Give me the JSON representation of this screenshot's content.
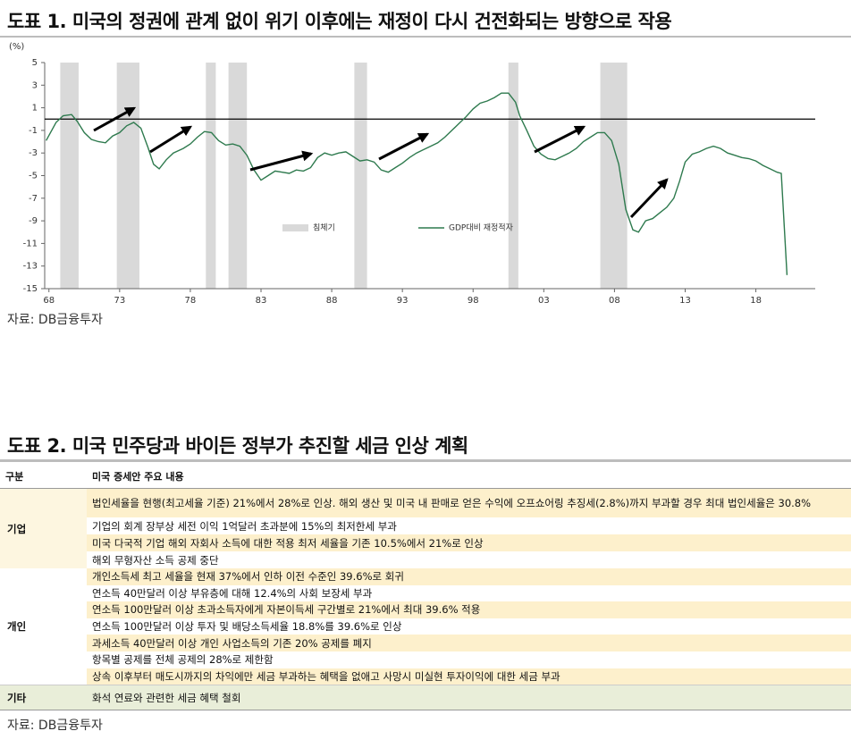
{
  "chart_data": {
    "type": "line",
    "title": "도표 1. 미국의 정권에 관계 없이 위기 이후에는 재정이 다시 건전화되는 방향으로 작용",
    "y_label": "(%)",
    "source": "자료: DB금융투자",
    "xlim": [
      1967.7,
      2022.2
    ],
    "xticks": [
      {
        "value": 1968,
        "label": "68"
      },
      {
        "value": 1973,
        "label": "73"
      },
      {
        "value": 1978,
        "label": "78"
      },
      {
        "value": 1983,
        "label": "83"
      },
      {
        "value": 1988,
        "label": "88"
      },
      {
        "value": 1993,
        "label": "93"
      },
      {
        "value": 1998,
        "label": "98"
      },
      {
        "value": 2003,
        "label": "03"
      },
      {
        "value": 2008,
        "label": "08"
      },
      {
        "value": 2013,
        "label": "13"
      },
      {
        "value": 2018,
        "label": "18"
      }
    ],
    "ylim": [
      -15,
      5
    ],
    "yticks": [
      5,
      3,
      1,
      -1,
      -3,
      -5,
      -7,
      -9,
      -11,
      -13,
      -15
    ],
    "recessions": {
      "name": "침체기",
      "color": "#d9d9d9",
      "ranges": [
        [
          1968.8,
          1970.1
        ],
        [
          1972.8,
          1974.4
        ],
        [
          1979.1,
          1979.8
        ],
        [
          1980.7,
          1982.0
        ],
        [
          1989.6,
          1990.5
        ],
        [
          2000.5,
          2001.2
        ],
        [
          2007.0,
          2008.9
        ]
      ]
    },
    "series": [
      {
        "name": "GDP대비 재정적자",
        "color": "#2e7a4e",
        "x": [
          1967.8,
          1968.5,
          1969.0,
          1969.6,
          1970.0,
          1970.5,
          1971.0,
          1971.5,
          1972.0,
          1972.5,
          1973.0,
          1973.5,
          1974.0,
          1974.5,
          1975.0,
          1975.4,
          1975.8,
          1976.3,
          1976.8,
          1977.5,
          1978.0,
          1978.5,
          1979.0,
          1979.5,
          1980.0,
          1980.5,
          1981.0,
          1981.5,
          1982.0,
          1982.5,
          1983.0,
          1983.5,
          1984.0,
          1984.5,
          1985.0,
          1985.5,
          1986.0,
          1986.5,
          1987.0,
          1987.5,
          1988.0,
          1988.5,
          1989.0,
          1989.5,
          1990.0,
          1990.5,
          1991.0,
          1991.5,
          1992.0,
          1992.5,
          1993.0,
          1993.5,
          1994.0,
          1994.5,
          1995.0,
          1995.5,
          1996.0,
          1996.5,
          1997.0,
          1997.5,
          1998.0,
          1998.5,
          1999.0,
          1999.5,
          2000.0,
          2000.5,
          2001.0,
          2001.3,
          2001.8,
          2002.3,
          2002.8,
          2003.3,
          2003.8,
          2004.3,
          2004.8,
          2005.3,
          2005.8,
          2006.3,
          2006.8,
          2007.3,
          2007.8,
          2008.3,
          2008.8,
          2009.3,
          2009.7,
          2010.2,
          2010.7,
          2011.2,
          2011.7,
          2012.2,
          2012.6,
          2013.0,
          2013.5,
          2014.0,
          2014.5,
          2015.0,
          2015.5,
          2016.0,
          2016.5,
          2017.0,
          2017.5,
          2018.0,
          2018.5,
          2019.0,
          2019.5,
          2019.8,
          2020.2
        ],
        "values": [
          -1.9,
          -0.3,
          0.3,
          0.4,
          -0.2,
          -1.2,
          -1.8,
          -2.0,
          -2.1,
          -1.5,
          -1.2,
          -0.6,
          -0.3,
          -0.8,
          -2.5,
          -4.0,
          -4.4,
          -3.6,
          -3.0,
          -2.6,
          -2.2,
          -1.6,
          -1.1,
          -1.2,
          -1.9,
          -2.3,
          -2.2,
          -2.4,
          -3.2,
          -4.5,
          -5.4,
          -5.0,
          -4.6,
          -4.7,
          -4.8,
          -4.5,
          -4.6,
          -4.3,
          -3.4,
          -3.0,
          -3.2,
          -3.0,
          -2.9,
          -3.3,
          -3.7,
          -3.6,
          -3.8,
          -4.5,
          -4.7,
          -4.3,
          -3.9,
          -3.4,
          -3.0,
          -2.7,
          -2.4,
          -2.1,
          -1.6,
          -1.0,
          -0.4,
          0.2,
          0.9,
          1.4,
          1.6,
          1.9,
          2.3,
          2.3,
          1.5,
          0.3,
          -1.0,
          -2.4,
          -3.1,
          -3.5,
          -3.6,
          -3.3,
          -3.0,
          -2.6,
          -2.0,
          -1.6,
          -1.2,
          -1.2,
          -1.9,
          -4.0,
          -8.0,
          -9.8,
          -10.0,
          -9.0,
          -8.8,
          -8.3,
          -7.8,
          -7.0,
          -5.5,
          -3.8,
          -3.1,
          -2.9,
          -2.6,
          -2.4,
          -2.6,
          -3.0,
          -3.2,
          -3.4,
          -3.5,
          -3.7,
          -4.1,
          -4.4,
          -4.7,
          -4.8,
          -13.8
        ]
      }
    ]
  },
  "table_section": {
    "title": "도표 2. 미국 민주당과 바이든 정부가 추진할 세금 인상 계획",
    "headers": [
      "구분",
      "미국 증세안 주요 내용"
    ],
    "groups": [
      {
        "category": "기업",
        "items": [
          "법인세율을 현행(최고세율 기준) 21%에서 28%로 인상. 해외 생산 및 미국 내 판매로 얻은 수익에 오프쇼어링 추징세(2.8%)까지 부과할 경우 최대 법인세율은 30.8%",
          "기업의 회계 장부상 세전 이익 1억달러 초과분에 15%의 최저한세 부과",
          "미국 다국적 기업 해외 자회사 소득에 대한 적용 최저 세율을 기존 10.5%에서 21%로 인상",
          "해외 무형자산 소득 공제 중단"
        ]
      },
      {
        "category": "개인",
        "items": [
          "개인소득세 최고 세율을 현재 37%에서 인하 이전 수준인 39.6%로 회귀",
          "연소득 40만달러 이상 부유층에 대해 12.4%의 사회 보장세 부과",
          "연소득 100만달러 이상 초과소득자에게 자본이득세 구간별로 21%에서 최대 39.6% 적용",
          "연소득 100만달러 이상 투자 및 배당소득세율 18.8%를 39.6%로 인상",
          "과세소득 40만달러 이상 개인 사업소득의 기존 20% 공제를 폐지",
          "항목별 공제를 전체 공제의 28%로 제한함",
          "상속 이후부터 매도시까지의 차익에만 세금 부과하는 혜택을 없애고 사망시 미실현 투자이익에 대한 세금 부과"
        ]
      },
      {
        "category": "기타",
        "items": [
          "화석 연료와 관련한 세금 혜택 철회"
        ]
      }
    ],
    "source": "자료: DB금융투자"
  }
}
